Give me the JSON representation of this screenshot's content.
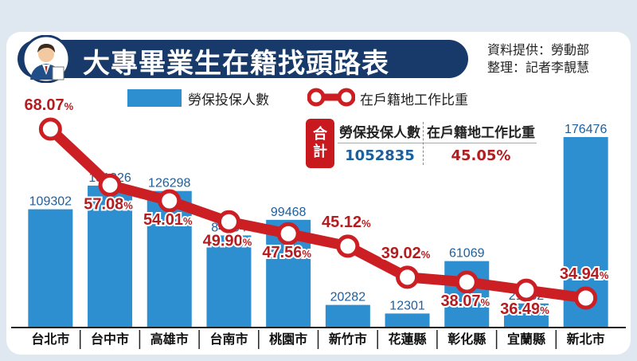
{
  "header": {
    "title": "大專畢業生在籍找頭路表",
    "source_line": "資料提供：勞動部",
    "editor_line": "整理：記者李靚慧"
  },
  "legend": {
    "bar_label": "勞保投保人數",
    "line_label": "在戶籍地工作比重"
  },
  "total": {
    "tag": "合計",
    "col1_header": "勞保投保人數",
    "col2_header": "在戶籍地工作比重",
    "col1_value": "1052835",
    "col2_value": "45.05%"
  },
  "colors": {
    "bar": "#2e8fd0",
    "line": "#cc1f24",
    "bar_label": "#1c5f9e",
    "line_label": "#b41c20",
    "title_bg": "#173a6a"
  },
  "chart_data": {
    "type": "bar",
    "categories": [
      "台北市",
      "台中市",
      "高雄市",
      "台南市",
      "桃園市",
      "新竹市",
      "花蓮縣",
      "彰化縣",
      "宜蘭縣",
      "新北市"
    ],
    "series": [
      {
        "name": "勞保投保人數",
        "type": "bar",
        "values": [
          109302,
          131326,
          126298,
          84954,
          99468,
          20282,
          12301,
          61069,
          21682,
          176476
        ]
      },
      {
        "name": "在戶籍地工作比重",
        "type": "line",
        "unit": "%",
        "values": [
          68.07,
          57.08,
          54.01,
          49.9,
          47.56,
          45.12,
          39.02,
          38.07,
          36.49,
          34.94
        ]
      }
    ],
    "bar_labels": [
      "109302",
      "131326",
      "126298",
      "84954",
      "99468",
      "20282",
      "12301",
      "61069",
      "21682",
      "176476"
    ],
    "line_labels": [
      "68.07",
      "57.08",
      "54.01",
      "49.90",
      "47.56",
      "45.12",
      "39.02",
      "38.07",
      "36.49",
      "34.94"
    ],
    "line_label_unit": "%"
  }
}
